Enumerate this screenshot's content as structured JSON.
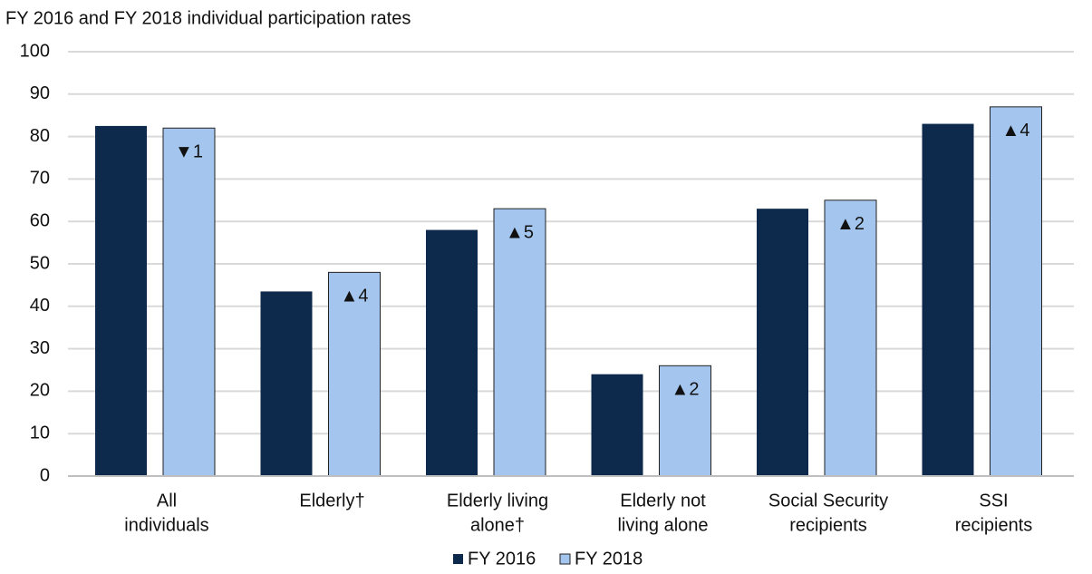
{
  "chart_data": {
    "type": "bar",
    "title": "FY 2016 and FY 2018 individual participation rates",
    "categories": [
      [
        "All",
        "individuals"
      ],
      [
        "Elderly†"
      ],
      [
        "Elderly living",
        "alone†"
      ],
      [
        "Elderly not",
        "living alone"
      ],
      [
        "Social Security",
        "recipients"
      ],
      [
        "SSI",
        "recipients"
      ]
    ],
    "series": [
      {
        "name": "FY 2016",
        "color": "#0d2a4c",
        "values": [
          82.5,
          43.5,
          58,
          24,
          63,
          83
        ]
      },
      {
        "name": "FY 2018",
        "color": "#a4c6ee",
        "values": [
          82,
          48,
          63,
          26,
          65,
          87
        ],
        "annotations": [
          "▼1",
          "▲4",
          "▲5",
          "▲2",
          "▲2",
          "▲4"
        ]
      }
    ],
    "ylim": [
      0,
      100
    ],
    "yticks": [
      0,
      10,
      20,
      30,
      40,
      50,
      60,
      70,
      80,
      90,
      100
    ],
    "grid": true,
    "legend": "bottom"
  }
}
